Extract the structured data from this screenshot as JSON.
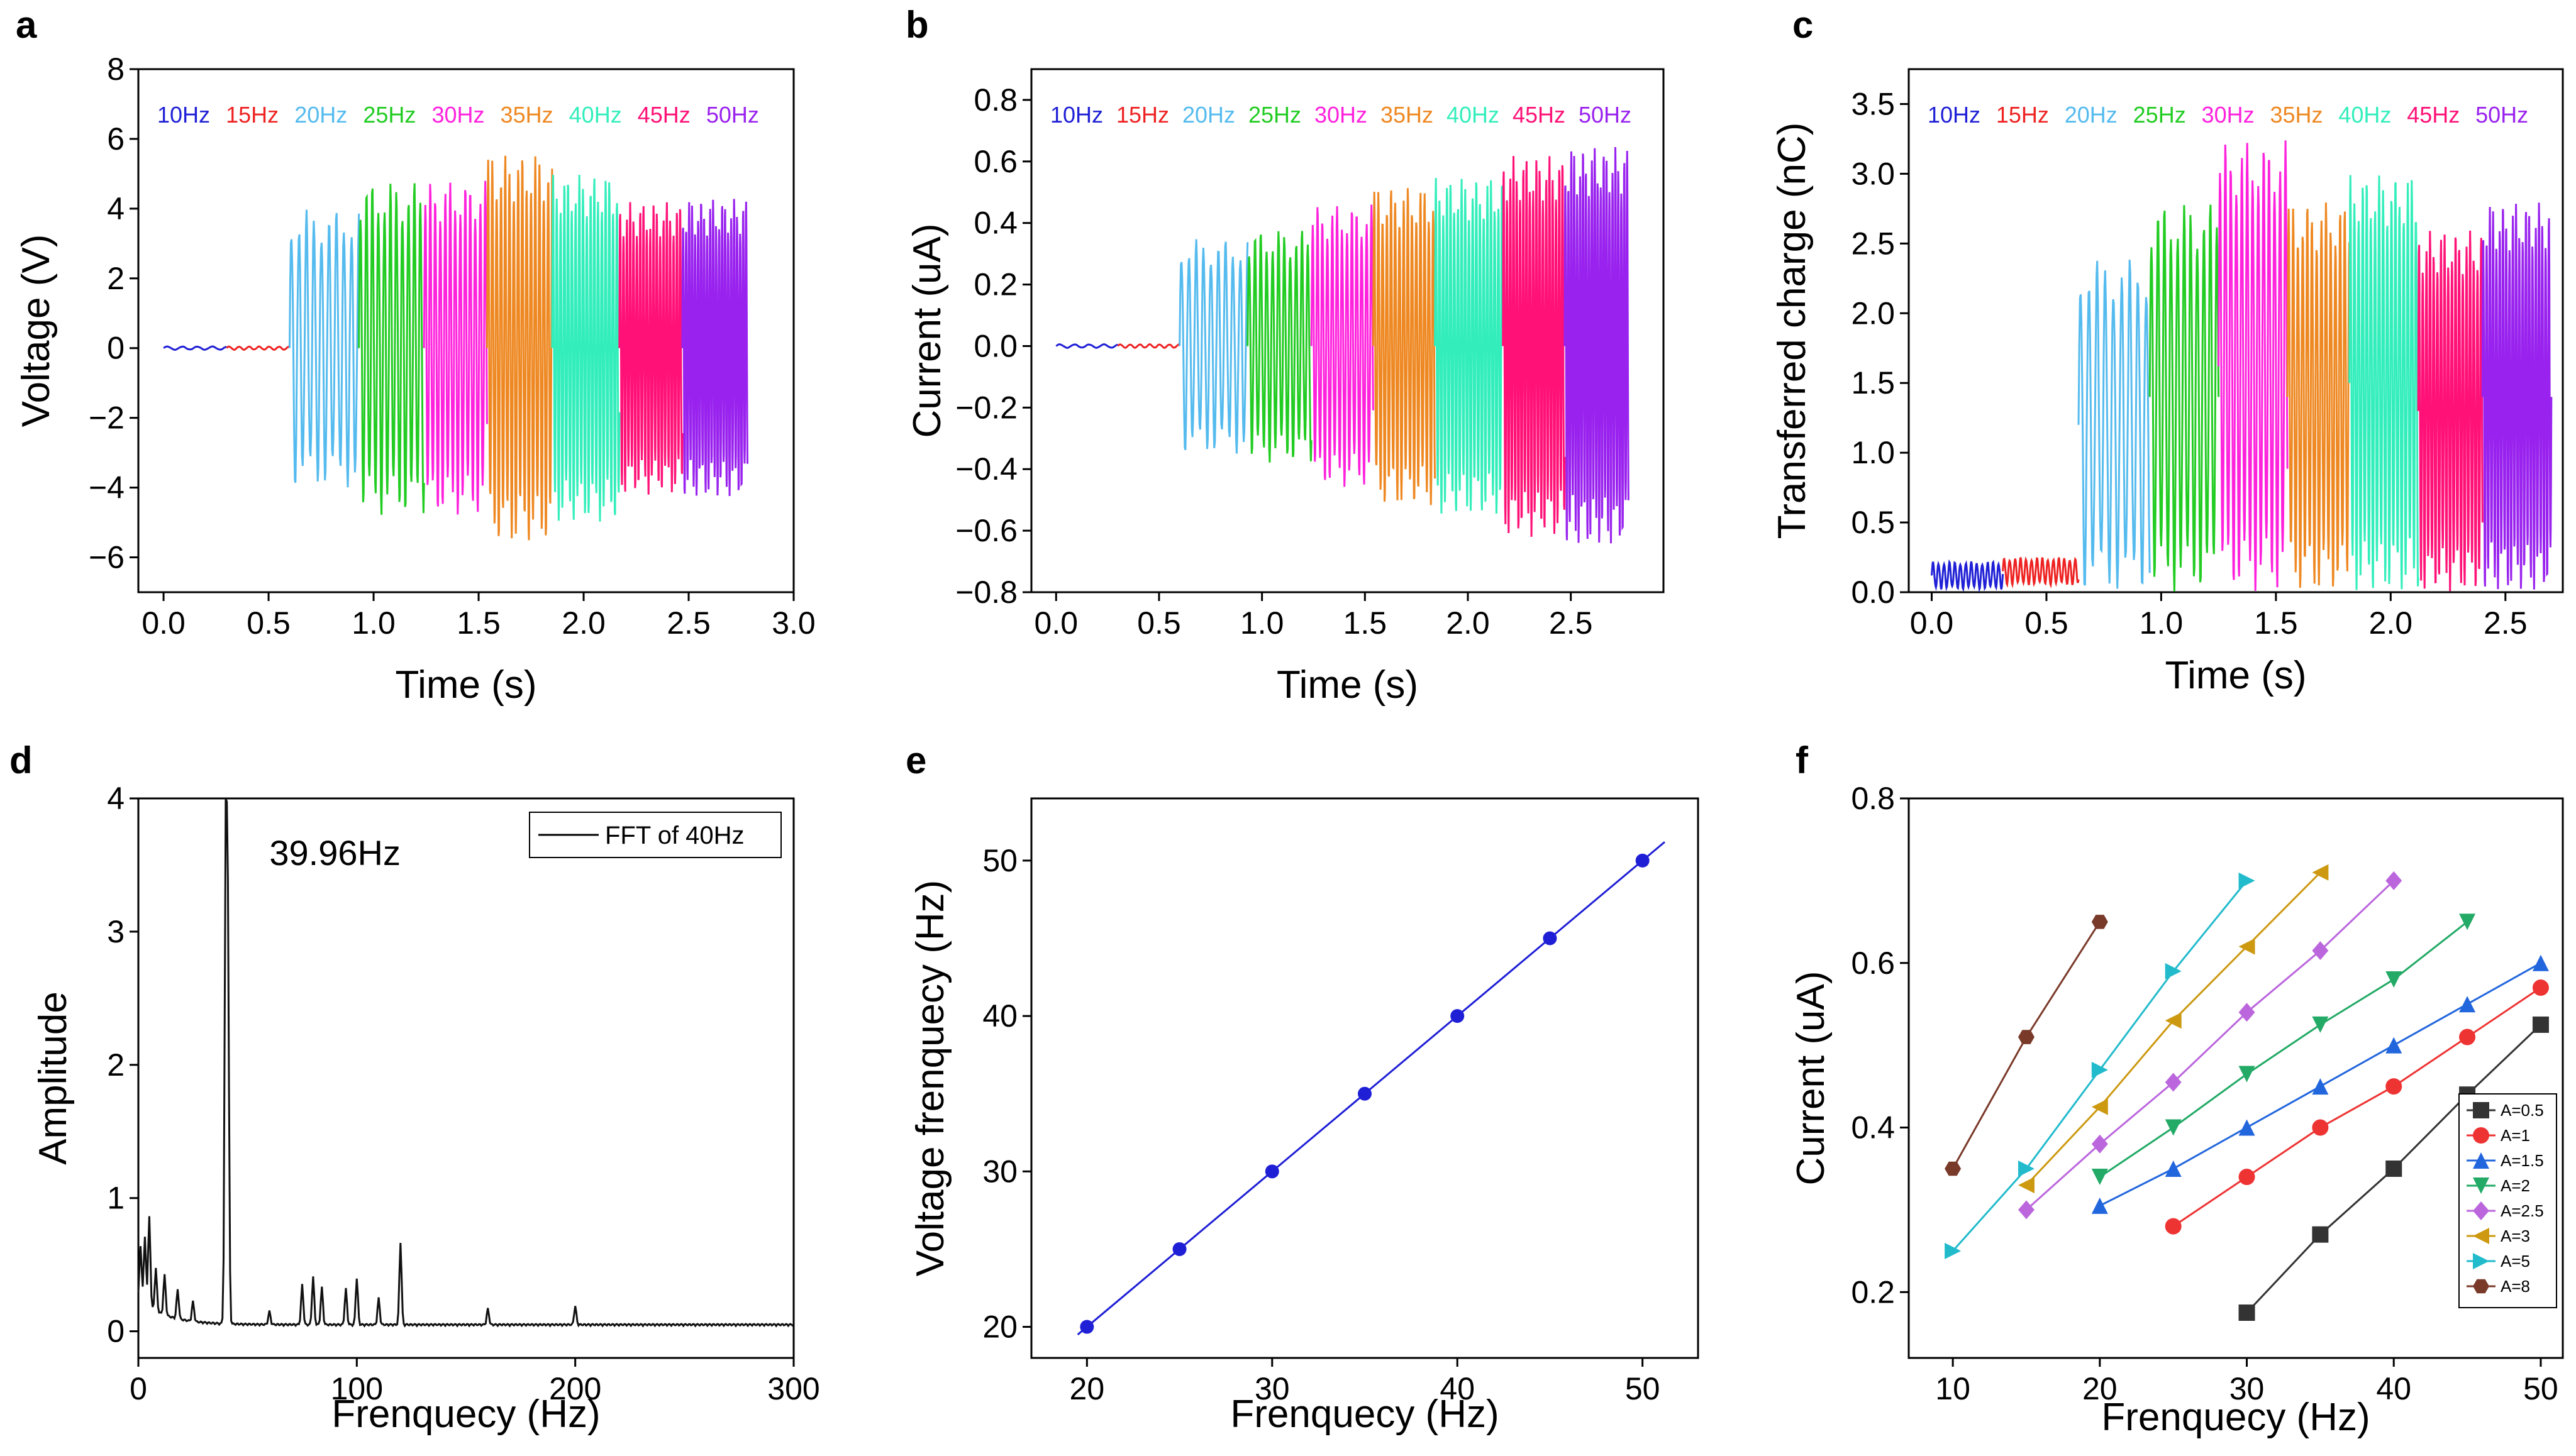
{
  "figure": {
    "panels": [
      "a",
      "b",
      "c",
      "d",
      "e",
      "f"
    ]
  },
  "chart_data": [
    {
      "id": "a",
      "type": "line",
      "title": "",
      "xlabel": "Time (s)",
      "ylabel": "Voltage (V)",
      "xlim": [
        -0.12,
        3.0
      ],
      "ylim": [
        -7,
        8
      ],
      "xticks": [
        0.0,
        0.5,
        1.0,
        1.5,
        2.0,
        2.5,
        3.0
      ],
      "yticks": [
        -6,
        -4,
        -2,
        0,
        2,
        4,
        6,
        8
      ],
      "xtick_labels": [
        "0.0",
        "0.5",
        "1.0",
        "1.5",
        "2.0",
        "2.5",
        "3.0"
      ],
      "ytick_labels": [
        "−6",
        "−4",
        "−2",
        "0",
        "2",
        "4",
        "6",
        "8"
      ],
      "series": [
        {
          "name": "10Hz",
          "color": "#1f1fd6",
          "t0": 0.0,
          "t1": 0.3,
          "freq": 10,
          "amp": 0.05,
          "off": 0.0
        },
        {
          "name": "15Hz",
          "color": "#ee2222",
          "t0": 0.3,
          "t1": 0.6,
          "freq": 15,
          "amp": 0.05,
          "off": 0.0
        },
        {
          "name": "20Hz",
          "color": "#55bbee",
          "t0": 0.6,
          "t1": 0.93,
          "freq": 20,
          "amp": 4.0,
          "off": 0.0
        },
        {
          "name": "25Hz",
          "color": "#22cc22",
          "t0": 0.93,
          "t1": 1.24,
          "freq": 25,
          "amp": 4.8,
          "off": 0.0
        },
        {
          "name": "30Hz",
          "color": "#ff22dd",
          "t0": 1.24,
          "t1": 1.54,
          "freq": 30,
          "amp": 4.8,
          "off": 0.0
        },
        {
          "name": "35Hz",
          "color": "#ee8822",
          "t0": 1.54,
          "t1": 1.85,
          "freq": 35,
          "amp": 5.6,
          "off": 0.0
        },
        {
          "name": "40Hz",
          "color": "#33eebb",
          "t0": 1.85,
          "t1": 2.17,
          "freq": 40,
          "amp": 5.0,
          "off": 0.0
        },
        {
          "name": "45Hz",
          "color": "#ff1177",
          "t0": 2.17,
          "t1": 2.47,
          "freq": 45,
          "amp": 4.2,
          "off": 0.0
        },
        {
          "name": "50Hz",
          "color": "#9922ee",
          "t0": 2.47,
          "t1": 2.78,
          "freq": 50,
          "amp": 4.3,
          "off": 0.0
        }
      ]
    },
    {
      "id": "b",
      "type": "line",
      "title": "",
      "xlabel": "Time (s)",
      "ylabel": "Current (uA)",
      "xlim": [
        -0.12,
        2.95
      ],
      "ylim": [
        -0.8,
        0.9
      ],
      "xticks": [
        0.0,
        0.5,
        1.0,
        1.5,
        2.0,
        2.5
      ],
      "yticks": [
        -0.8,
        -0.6,
        -0.4,
        -0.2,
        0.0,
        0.2,
        0.4,
        0.6,
        0.8
      ],
      "xtick_labels": [
        "0.0",
        "0.5",
        "1.0",
        "1.5",
        "2.0",
        "2.5"
      ],
      "ytick_labels": [
        "−0.8",
        "−0.6",
        "−0.4",
        "−0.2",
        "0.0",
        "0.2",
        "0.4",
        "0.6",
        "0.8"
      ],
      "series": [
        {
          "name": "10Hz",
          "color": "#1f1fd6",
          "t0": 0.0,
          "t1": 0.3,
          "freq": 10,
          "amp": 0.006,
          "off": 0.0
        },
        {
          "name": "15Hz",
          "color": "#ee2222",
          "t0": 0.3,
          "t1": 0.6,
          "freq": 15,
          "amp": 0.006,
          "off": 0.0
        },
        {
          "name": "20Hz",
          "color": "#55bbee",
          "t0": 0.6,
          "t1": 0.93,
          "freq": 20,
          "amp": 0.35,
          "off": 0.0
        },
        {
          "name": "25Hz",
          "color": "#22cc22",
          "t0": 0.93,
          "t1": 1.24,
          "freq": 25,
          "amp": 0.38,
          "off": 0.0
        },
        {
          "name": "30Hz",
          "color": "#ff22dd",
          "t0": 1.24,
          "t1": 1.54,
          "freq": 30,
          "amp": 0.46,
          "off": 0.0
        },
        {
          "name": "35Hz",
          "color": "#ee8822",
          "t0": 1.54,
          "t1": 1.84,
          "freq": 35,
          "amp": 0.52,
          "off": 0.0
        },
        {
          "name": "40Hz",
          "color": "#33eebb",
          "t0": 1.84,
          "t1": 2.17,
          "freq": 40,
          "amp": 0.55,
          "off": 0.0
        },
        {
          "name": "45Hz",
          "color": "#ff1177",
          "t0": 2.17,
          "t1": 2.47,
          "freq": 45,
          "amp": 0.62,
          "off": 0.0
        },
        {
          "name": "50Hz",
          "color": "#9922ee",
          "t0": 2.47,
          "t1": 2.78,
          "freq": 50,
          "amp": 0.65,
          "off": 0.0
        }
      ]
    },
    {
      "id": "c",
      "type": "line",
      "title": "",
      "xlabel": "Time (s)",
      "ylabel": "Transferred charge (nC)",
      "xlim": [
        -0.1,
        2.75
      ],
      "ylim": [
        0,
        3.75
      ],
      "xticks": [
        0.0,
        0.5,
        1.0,
        1.5,
        2.0,
        2.5
      ],
      "yticks": [
        0.0,
        0.5,
        1.0,
        1.5,
        2.0,
        2.5,
        3.0,
        3.5
      ],
      "xtick_labels": [
        "0.0",
        "0.5",
        "1.0",
        "1.5",
        "2.0",
        "2.5"
      ],
      "ytick_labels": [
        "0.0",
        "0.5",
        "1.0",
        "1.5",
        "2.0",
        "2.5",
        "3.0",
        "3.5"
      ],
      "series": [
        {
          "name": "10Hz",
          "color": "#1f1fd6",
          "t0": 0.0,
          "t1": 0.31,
          "freq": 30,
          "amp": 0.1,
          "off": 0.12
        },
        {
          "name": "15Hz",
          "color": "#ee2222",
          "t0": 0.31,
          "t1": 0.64,
          "freq": 30,
          "amp": 0.1,
          "off": 0.15
        },
        {
          "name": "20Hz",
          "color": "#55bbee",
          "t0": 0.64,
          "t1": 0.95,
          "freq": 20,
          "amp": 1.2,
          "off": 1.2
        },
        {
          "name": "25Hz",
          "color": "#22cc22",
          "t0": 0.95,
          "t1": 1.25,
          "freq": 25,
          "amp": 1.4,
          "off": 1.4
        },
        {
          "name": "30Hz",
          "color": "#ff22dd",
          "t0": 1.25,
          "t1": 1.55,
          "freq": 30,
          "amp": 1.62,
          "off": 1.62
        },
        {
          "name": "35Hz",
          "color": "#ee8822",
          "t0": 1.55,
          "t1": 1.82,
          "freq": 35,
          "amp": 1.4,
          "off": 1.4
        },
        {
          "name": "40Hz",
          "color": "#33eebb",
          "t0": 1.82,
          "t1": 2.12,
          "freq": 40,
          "amp": 1.5,
          "off": 1.5
        },
        {
          "name": "45Hz",
          "color": "#ff1177",
          "t0": 2.12,
          "t1": 2.4,
          "freq": 45,
          "amp": 1.3,
          "off": 1.3
        },
        {
          "name": "50Hz",
          "color": "#9922ee",
          "t0": 2.4,
          "t1": 2.7,
          "freq": 50,
          "amp": 1.4,
          "off": 1.4
        }
      ]
    },
    {
      "id": "d",
      "type": "line",
      "title": "",
      "xlabel": "Frenquecy (Hz)",
      "ylabel": "Amplitude",
      "xlim": [
        0,
        300
      ],
      "ylim": [
        -0.2,
        4
      ],
      "xticks": [
        0,
        100,
        200,
        300
      ],
      "yticks": [
        0,
        1,
        2,
        3,
        4
      ],
      "xtick_labels": [
        "0",
        "100",
        "200",
        "300"
      ],
      "ytick_labels": [
        "0",
        "1",
        "2",
        "3",
        "4"
      ],
      "legend": "FFT of 40Hz",
      "annotation": "39.96Hz",
      "annotation_pos": [
        60,
        3.5
      ],
      "peaks": [
        {
          "f": 1,
          "a": 0.4
        },
        {
          "f": 3,
          "a": 0.5
        },
        {
          "f": 5,
          "a": 0.68
        },
        {
          "f": 8,
          "a": 0.32
        },
        {
          "f": 12,
          "a": 0.3
        },
        {
          "f": 18,
          "a": 0.22
        },
        {
          "f": 25,
          "a": 0.15
        },
        {
          "f": 40,
          "a": 3.62
        },
        {
          "f": 41,
          "a": 2.85
        },
        {
          "f": 60,
          "a": 0.1
        },
        {
          "f": 75,
          "a": 0.3
        },
        {
          "f": 80,
          "a": 0.36
        },
        {
          "f": 84,
          "a": 0.28
        },
        {
          "f": 95,
          "a": 0.27
        },
        {
          "f": 100,
          "a": 0.35
        },
        {
          "f": 110,
          "a": 0.2
        },
        {
          "f": 120,
          "a": 0.62
        },
        {
          "f": 160,
          "a": 0.12
        },
        {
          "f": 200,
          "a": 0.14
        }
      ]
    },
    {
      "id": "e",
      "type": "scatter",
      "title": "",
      "xlabel": "Frenquecy (Hz)",
      "ylabel": "Voltage frenquecy (Hz)",
      "xlim": [
        17,
        53
      ],
      "ylim": [
        18,
        54
      ],
      "xticks": [
        20,
        30,
        40,
        50
      ],
      "yticks": [
        20,
        30,
        40,
        50
      ],
      "xtick_labels": [
        "20",
        "30",
        "40",
        "50"
      ],
      "ytick_labels": [
        "20",
        "30",
        "40",
        "50"
      ],
      "color": "#1f1fd6",
      "x": [
        20,
        25,
        30,
        35,
        40,
        45,
        50
      ],
      "y": [
        20,
        25,
        30,
        35,
        40,
        45,
        50
      ],
      "fit_line": [
        [
          19.5,
          19.5
        ],
        [
          51.2,
          51.2
        ]
      ]
    },
    {
      "id": "f",
      "type": "line",
      "title": "",
      "xlabel": "Frenquecy (Hz)",
      "ylabel": "Current (uA)",
      "xlim": [
        7,
        51.5
      ],
      "ylim": [
        0.12,
        0.8
      ],
      "xticks": [
        10,
        20,
        30,
        40,
        50
      ],
      "yticks": [
        0.2,
        0.4,
        0.6,
        0.8
      ],
      "xtick_labels": [
        "10",
        "20",
        "30",
        "40",
        "50"
      ],
      "ytick_labels": [
        "0.2",
        "0.4",
        "0.6",
        "0.8"
      ],
      "series": [
        {
          "name": "A=0.5",
          "color": "#333333",
          "marker": "square",
          "x": [
            30,
            35,
            40,
            45,
            50
          ],
          "y": [
            0.175,
            0.27,
            0.35,
            0.44,
            0.525
          ]
        },
        {
          "name": "A=1",
          "color": "#ee3333",
          "marker": "circle",
          "x": [
            25,
            30,
            35,
            40,
            45,
            50
          ],
          "y": [
            0.28,
            0.34,
            0.4,
            0.45,
            0.51,
            0.57
          ]
        },
        {
          "name": "A=1.5",
          "color": "#2266dd",
          "marker": "tri-up",
          "x": [
            20,
            25,
            30,
            35,
            40,
            45,
            50
          ],
          "y": [
            0.305,
            0.35,
            0.4,
            0.45,
            0.5,
            0.55,
            0.6
          ]
        },
        {
          "name": "A=2",
          "color": "#22aa66",
          "marker": "tri-down",
          "x": [
            20,
            25,
            30,
            35,
            40,
            45
          ],
          "y": [
            0.34,
            0.4,
            0.465,
            0.525,
            0.58,
            0.65
          ]
        },
        {
          "name": "A=2.5",
          "color": "#bb66dd",
          "marker": "diamond",
          "x": [
            15,
            20,
            25,
            30,
            35,
            40
          ],
          "y": [
            0.3,
            0.38,
            0.455,
            0.54,
            0.615,
            0.7
          ]
        },
        {
          "name": "A=3",
          "color": "#cc9911",
          "marker": "tri-left",
          "x": [
            15,
            20,
            25,
            30,
            35
          ],
          "y": [
            0.33,
            0.425,
            0.53,
            0.62,
            0.71
          ]
        },
        {
          "name": "A=5",
          "color": "#22bbcc",
          "marker": "tri-right",
          "x": [
            10,
            15,
            20,
            25,
            30
          ],
          "y": [
            0.25,
            0.35,
            0.47,
            0.59,
            0.7
          ]
        },
        {
          "name": "A=8",
          "color": "#7a3a2a",
          "marker": "hexagon",
          "x": [
            10,
            15,
            20
          ],
          "y": [
            0.35,
            0.51,
            0.65
          ]
        }
      ]
    }
  ]
}
